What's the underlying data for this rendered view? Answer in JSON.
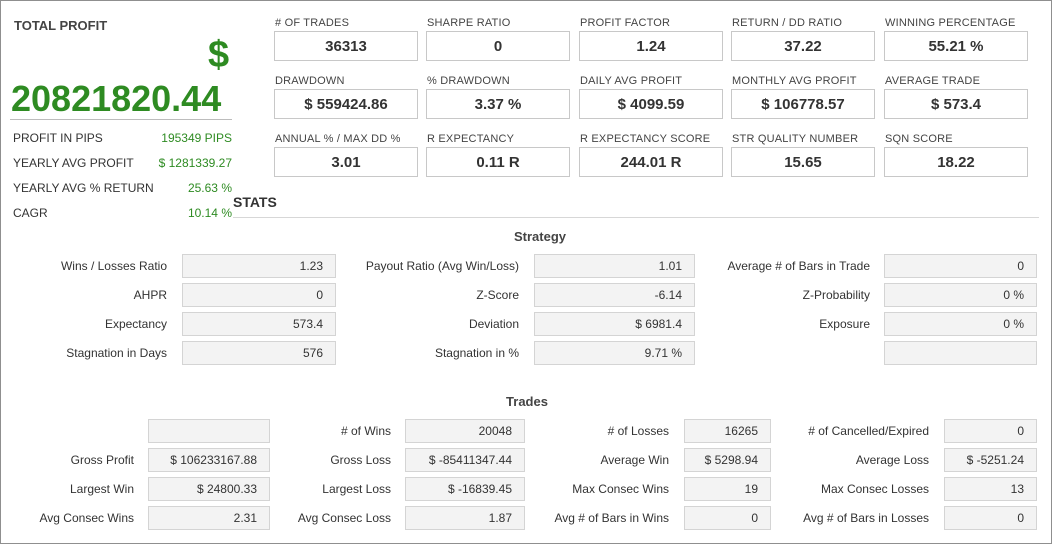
{
  "summary": {
    "title": "TOTAL PROFIT",
    "currency_symbol": "$",
    "total_profit": "20821820.44",
    "rows": [
      {
        "label": "PROFIT IN PIPS",
        "value": "195349 PIPS"
      },
      {
        "label": "YEARLY AVG PROFIT",
        "value": "$ 1281339.27"
      },
      {
        "label": "YEARLY AVG % RETURN",
        "value": "25.63 %"
      },
      {
        "label": "CAGR",
        "value": "10.14 %"
      }
    ]
  },
  "metrics": [
    [
      {
        "label": "# OF TRADES",
        "value": "36313"
      },
      {
        "label": "SHARPE RATIO",
        "value": "0"
      },
      {
        "label": "PROFIT FACTOR",
        "value": "1.24"
      },
      {
        "label": "RETURN / DD RATIO",
        "value": "37.22"
      },
      {
        "label": "WINNING PERCENTAGE",
        "value": "55.21 %"
      }
    ],
    [
      {
        "label": "DRAWDOWN",
        "value": "$ 559424.86"
      },
      {
        "label": "% DRAWDOWN",
        "value": "3.37 %"
      },
      {
        "label": "DAILY AVG PROFIT",
        "value": "$ 4099.59"
      },
      {
        "label": "MONTHLY AVG PROFIT",
        "value": "$ 106778.57"
      },
      {
        "label": "AVERAGE TRADE",
        "value": "$ 573.4"
      }
    ],
    [
      {
        "label": "ANNUAL % / MAX DD %",
        "value": "3.01"
      },
      {
        "label": "R EXPECTANCY",
        "value": "0.11 R"
      },
      {
        "label": "R EXPECTANCY SCORE",
        "value": "244.01 R"
      },
      {
        "label": "STR QUALITY NUMBER",
        "value": "15.65"
      },
      {
        "label": "SQN SCORE",
        "value": "18.22"
      }
    ]
  ],
  "stats_heading": "STATS",
  "strategy": {
    "title": "Strategy",
    "rows": [
      [
        {
          "label": "Wins / Losses Ratio",
          "value": "1.23"
        },
        {
          "label": "Payout Ratio (Avg Win/Loss)",
          "value": "1.01"
        },
        {
          "label": "Average # of Bars in Trade",
          "value": "0"
        }
      ],
      [
        {
          "label": "AHPR",
          "value": "0"
        },
        {
          "label": "Z-Score",
          "value": "-6.14"
        },
        {
          "label": "Z-Probability",
          "value": "0 %"
        }
      ],
      [
        {
          "label": "Expectancy",
          "value": "573.4"
        },
        {
          "label": "Deviation",
          "value": "$ 6981.4"
        },
        {
          "label": "Exposure",
          "value": "0 %"
        }
      ],
      [
        {
          "label": "Stagnation in Days",
          "value": "576"
        },
        {
          "label": "Stagnation in %",
          "value": "9.71 %"
        },
        {
          "label": "",
          "value": ""
        }
      ]
    ]
  },
  "trades": {
    "title": "Trades",
    "rows": [
      [
        {
          "label": "",
          "value": ""
        },
        {
          "label": "# of Wins",
          "value": "20048"
        },
        {
          "label": "# of Losses",
          "value": "16265"
        },
        {
          "label": "# of Cancelled/Expired",
          "value": "0"
        }
      ],
      [
        {
          "label": "Gross Profit",
          "value": "$ 106233167.88"
        },
        {
          "label": "Gross Loss",
          "value": "$ -85411347.44"
        },
        {
          "label": "Average Win",
          "value": "$ 5298.94"
        },
        {
          "label": "Average Loss",
          "value": "$ -5251.24"
        }
      ],
      [
        {
          "label": "Largest Win",
          "value": "$ 24800.33"
        },
        {
          "label": "Largest Loss",
          "value": "$ -16839.45"
        },
        {
          "label": "Max Consec Wins",
          "value": "19"
        },
        {
          "label": "Max Consec Losses",
          "value": "13"
        }
      ],
      [
        {
          "label": "Avg Consec Wins",
          "value": "2.31"
        },
        {
          "label": "Avg Consec Loss",
          "value": "1.87"
        },
        {
          "label": "Avg # of Bars in Wins",
          "value": "0"
        },
        {
          "label": "Avg # of Bars in Losses",
          "value": "0"
        }
      ]
    ]
  }
}
